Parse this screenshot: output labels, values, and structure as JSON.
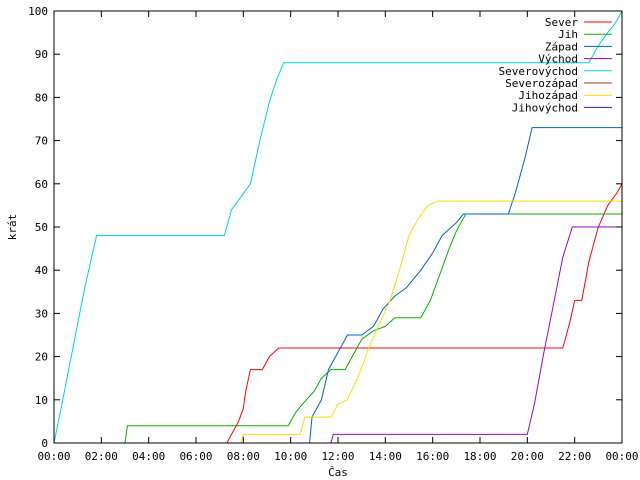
{
  "chart_data": {
    "type": "line",
    "xlabel": "Čas",
    "ylabel": "krát",
    "xlim": [
      0,
      24
    ],
    "ylim": [
      0,
      100
    ],
    "xticks": [
      {
        "v": 0,
        "label": "00:00"
      },
      {
        "v": 2,
        "label": "02:00"
      },
      {
        "v": 4,
        "label": "04:00"
      },
      {
        "v": 6,
        "label": "06:00"
      },
      {
        "v": 8,
        "label": "08:00"
      },
      {
        "v": 10,
        "label": "10:00"
      },
      {
        "v": 12,
        "label": "12:00"
      },
      {
        "v": 14,
        "label": "14:00"
      },
      {
        "v": 16,
        "label": "16:00"
      },
      {
        "v": 18,
        "label": "18:00"
      },
      {
        "v": 20,
        "label": "20:00"
      },
      {
        "v": 22,
        "label": "22:00"
      },
      {
        "v": 24,
        "label": "00:00"
      }
    ],
    "yticks": [
      0,
      10,
      20,
      30,
      40,
      50,
      60,
      70,
      80,
      90,
      100
    ],
    "grid": false,
    "legend": "top-right",
    "series": [
      {
        "name": "Sever",
        "color": "#ff0000",
        "points": [
          [
            0,
            0
          ],
          [
            7.3,
            0
          ],
          [
            7.5,
            2
          ],
          [
            7.8,
            5
          ],
          [
            8.0,
            8
          ],
          [
            8.1,
            12
          ],
          [
            8.3,
            17
          ],
          [
            8.8,
            17
          ],
          [
            9.1,
            20
          ],
          [
            9.5,
            22
          ],
          [
            21.5,
            22
          ],
          [
            21.8,
            28
          ],
          [
            22.0,
            33
          ],
          [
            22.3,
            33
          ],
          [
            22.6,
            42
          ],
          [
            23.0,
            50
          ],
          [
            23.4,
            55
          ],
          [
            23.8,
            58
          ],
          [
            24,
            60
          ]
        ]
      },
      {
        "name": "Jih",
        "color": "#00b000",
        "points": [
          [
            0,
            0
          ],
          [
            3.0,
            0
          ],
          [
            3.1,
            4
          ],
          [
            9.9,
            4
          ],
          [
            10.2,
            7
          ],
          [
            10.5,
            9
          ],
          [
            11.0,
            12
          ],
          [
            11.3,
            15
          ],
          [
            11.7,
            17
          ],
          [
            12.3,
            17
          ],
          [
            12.6,
            20
          ],
          [
            13.0,
            24
          ],
          [
            13.5,
            26
          ],
          [
            14.0,
            27
          ],
          [
            14.4,
            29
          ],
          [
            15.5,
            29
          ],
          [
            15.9,
            33
          ],
          [
            16.3,
            39
          ],
          [
            16.7,
            45
          ],
          [
            17.0,
            49
          ],
          [
            17.4,
            53
          ],
          [
            24,
            53
          ]
        ]
      },
      {
        "name": "Západ",
        "color": "#0060d0",
        "points": [
          [
            0,
            0
          ],
          [
            10.8,
            0
          ],
          [
            10.9,
            6
          ],
          [
            11.3,
            10
          ],
          [
            11.6,
            17
          ],
          [
            12.0,
            21
          ],
          [
            12.4,
            25
          ],
          [
            13.0,
            25
          ],
          [
            13.5,
            27
          ],
          [
            13.9,
            31
          ],
          [
            14.4,
            34
          ],
          [
            14.9,
            36
          ],
          [
            15.5,
            40
          ],
          [
            16.0,
            44
          ],
          [
            16.4,
            48
          ],
          [
            17.0,
            51
          ],
          [
            17.3,
            53
          ],
          [
            19.2,
            53
          ],
          [
            19.5,
            58
          ],
          [
            19.9,
            66
          ],
          [
            20.2,
            73
          ],
          [
            24,
            73
          ]
        ]
      },
      {
        "name": "Východ",
        "color": "#a000c0",
        "points": [
          [
            0,
            0
          ],
          [
            11.7,
            0
          ],
          [
            11.8,
            2
          ],
          [
            20.0,
            2
          ],
          [
            20.3,
            9
          ],
          [
            20.7,
            21
          ],
          [
            21.1,
            32
          ],
          [
            21.5,
            43
          ],
          [
            21.9,
            50
          ],
          [
            24,
            50
          ]
        ]
      },
      {
        "name": "Severovýchod",
        "color": "#00d0d8",
        "points": [
          [
            0,
            0
          ],
          [
            0.3,
            8
          ],
          [
            0.8,
            22
          ],
          [
            1.3,
            36
          ],
          [
            1.8,
            48
          ],
          [
            7.2,
            48
          ],
          [
            7.5,
            54
          ],
          [
            7.9,
            57
          ],
          [
            8.3,
            60
          ],
          [
            8.7,
            70
          ],
          [
            9.1,
            79
          ],
          [
            9.4,
            84
          ],
          [
            9.7,
            88
          ],
          [
            22.6,
            88
          ],
          [
            23.0,
            92
          ],
          [
            23.4,
            95
          ],
          [
            23.7,
            97
          ],
          [
            24,
            100
          ]
        ]
      },
      {
        "name": "Severozápad",
        "color": "#a04030",
        "points": [
          [
            0,
            0
          ],
          [
            24,
            0
          ]
        ]
      },
      {
        "name": "Jihozápad",
        "color": "#f0e000",
        "points": [
          [
            0,
            0
          ],
          [
            7.9,
            0
          ],
          [
            8.0,
            2
          ],
          [
            10.4,
            2
          ],
          [
            10.6,
            6
          ],
          [
            11.7,
            6
          ],
          [
            12.0,
            9
          ],
          [
            12.4,
            10
          ],
          [
            12.9,
            16
          ],
          [
            13.3,
            22
          ],
          [
            13.7,
            27
          ],
          [
            14.2,
            33
          ],
          [
            14.6,
            40
          ],
          [
            15.0,
            48
          ],
          [
            15.4,
            52
          ],
          [
            15.8,
            55
          ],
          [
            16.2,
            56
          ],
          [
            24,
            56
          ]
        ]
      },
      {
        "name": "Jihovýchod",
        "color": "#2020c0",
        "points": [
          [
            0,
            0
          ],
          [
            24,
            0
          ]
        ]
      }
    ]
  }
}
